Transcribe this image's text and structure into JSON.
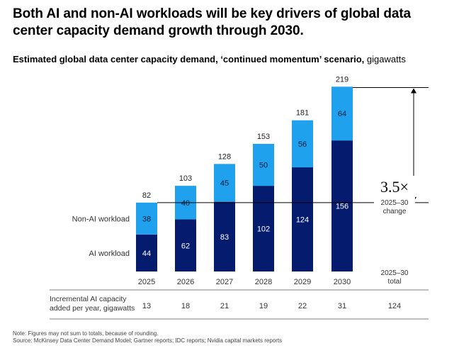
{
  "title": "Both AI and non-AI workloads will be key drivers of global data center capacity demand growth through 2030.",
  "subtitle": "Estimated global data center capacity demand, ‘continued momentum’ scenario,",
  "subtitle_unit": "gigawatts",
  "chart_data": {
    "type": "bar",
    "stacked": true,
    "categories": [
      "2025",
      "2026",
      "2027",
      "2028",
      "2029",
      "2030"
    ],
    "series": [
      {
        "name": "AI workload",
        "values": [
          44,
          62,
          83,
          102,
          124,
          156
        ],
        "color": "#051c6e"
      },
      {
        "name": "Non-AI workload",
        "values": [
          38,
          40,
          45,
          50,
          56,
          64
        ],
        "color": "#1fa1ee"
      }
    ],
    "totals": [
      82,
      103,
      128,
      153,
      181,
      219
    ],
    "ylim": [
      0,
      219
    ],
    "annotation": {
      "value": "3.5×",
      "label_line1": "2025–30",
      "label_line2": "change"
    },
    "total_column_label_line1": "2025–30",
    "total_column_label_line2": "total",
    "incremental_label_line1": "Incremental AI capacity",
    "incremental_label_line2": "added per year, gigawatts",
    "incremental_values": [
      "13",
      "18",
      "21",
      "19",
      "22",
      "31"
    ],
    "incremental_total": "124"
  },
  "note_line1": "Note: Figures may not sum to totals, because of rounding.",
  "note_line2": "Source: McKinsey Data Center Demand Model; Gartner reports; IDC reports; Nvidia capital markets reports"
}
